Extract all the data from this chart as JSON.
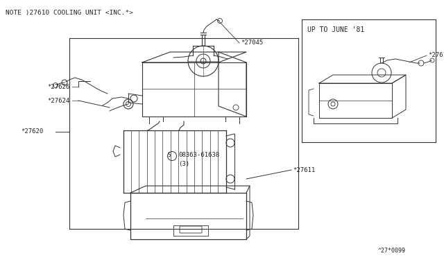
{
  "bg_color": "#ffffff",
  "line_color": "#333333",
  "text_color": "#222222",
  "title": "NOTE )27610 COOLING UNIT <INC.*>",
  "footer": "^27*0099",
  "inset_title": "UP TO JUNE '81",
  "fig_w": 6.4,
  "fig_h": 3.72,
  "dpi": 100
}
